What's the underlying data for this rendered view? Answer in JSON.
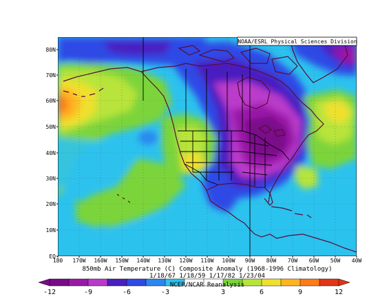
{
  "credit": "NOAA/ESRL Physical Sciences Division",
  "title": "850mb Air Temperature (C) Composite Anomaly (1968-1996 Climatology)",
  "dates": "1/18/67 1/18/59 1/17/82 1/23/04",
  "source": "NCEP/NCAR Reanalysis",
  "lat_labels": [
    "80N",
    "70N",
    "60N",
    "50N",
    "40N",
    "30N",
    "20N",
    "10N",
    "EQ"
  ],
  "lon_labels": [
    "180",
    "170W",
    "160W",
    "150W",
    "140W",
    "130W",
    "120W",
    "110W",
    "100W",
    "90W",
    "80W",
    "70W",
    "60W",
    "50W",
    "40W"
  ],
  "colorbar": {
    "ticks": [
      "-12",
      "-9",
      "-6",
      "-3",
      "3",
      "6",
      "9",
      "12"
    ],
    "colors": [
      "#7a0a8a",
      "#9a18a8",
      "#bb3acb",
      "#4a1fc0",
      "#2f48e6",
      "#2a86f0",
      "#2cc2ee",
      "#ffffff",
      "#ffffff",
      "#7bd43a",
      "#b8e43a",
      "#f0e02e",
      "#ffb422",
      "#ff7a18",
      "#e23418"
    ]
  },
  "map": {
    "domain": "180W-40W, 0-87N",
    "ocean_color": "#2cc2ee",
    "anomaly_max_location": "Great Lakes / Ohio Valley",
    "anomaly_sign_east": "cold",
    "anomaly_sign_west": "warm"
  }
}
